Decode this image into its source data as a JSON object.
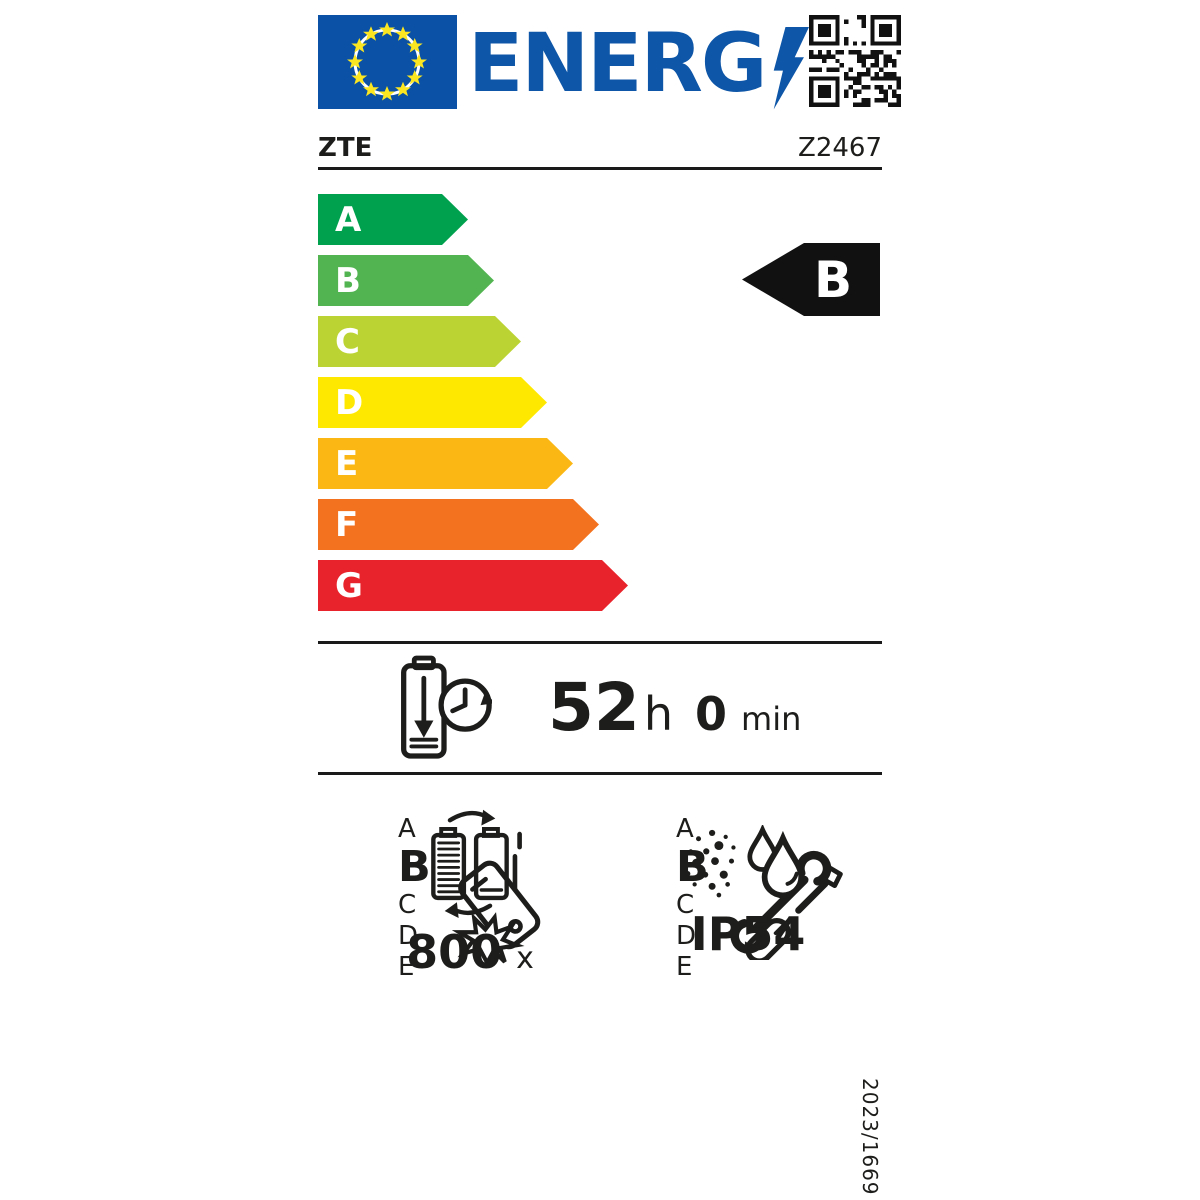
{
  "header": {
    "logo_text": "ENERG",
    "qr_label": "qr-code"
  },
  "brand": {
    "supplier": "ZTE",
    "model": "Z2467"
  },
  "scale": {
    "grades": [
      "A",
      "B",
      "C",
      "D",
      "E",
      "F",
      "G"
    ]
  },
  "rating": {
    "grade": "B"
  },
  "battery_endurance": {
    "hours": "52",
    "hours_unit": "h",
    "minutes": "0",
    "minutes_unit": "min"
  },
  "drop_resistance": {
    "grade": "B",
    "classes": [
      "A",
      "B",
      "C",
      "D",
      "E"
    ]
  },
  "repairability": {
    "grade": "B",
    "classes": [
      "A",
      "B",
      "C",
      "D",
      "E"
    ]
  },
  "battery_cycles": {
    "value": "800",
    "unit": "x"
  },
  "ip_rating": {
    "value": "IP54"
  },
  "regulation_number": "2023/1669",
  "icons": {
    "eu_flag": "eu-flag",
    "lightning_bolt": "lightning-bolt-icon",
    "qr_code": "qr-code",
    "battery_endurance": "battery-clock-icon",
    "drop_resistance": "falling-phone-icon",
    "repairability": "wrench-screwdriver-icon",
    "battery_cycles": "battery-cycle-icon",
    "ip_rating": "dust-water-icon"
  },
  "colors": {
    "brand_blue": "#0e56a7",
    "grade_a": "#00a14e",
    "grade_b": "#52b451",
    "grade_c": "#bcd433",
    "grade_d": "#ffe800",
    "grade_e": "#fbb713",
    "grade_f": "#f3721f",
    "grade_g": "#e9232b",
    "indicator_black": "#111111",
    "text_black": "#1d1d1b"
  }
}
